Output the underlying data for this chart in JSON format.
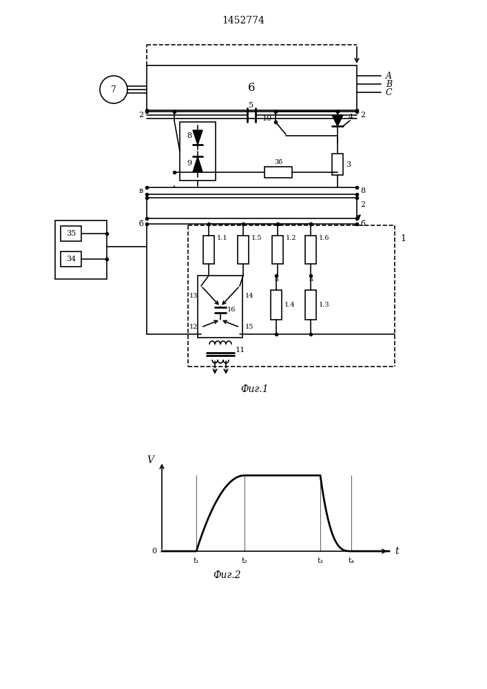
{
  "title": "1452774",
  "fig1_label": "Фиг.1",
  "fig2_label": "Фиг.2",
  "line_color": "#000000"
}
